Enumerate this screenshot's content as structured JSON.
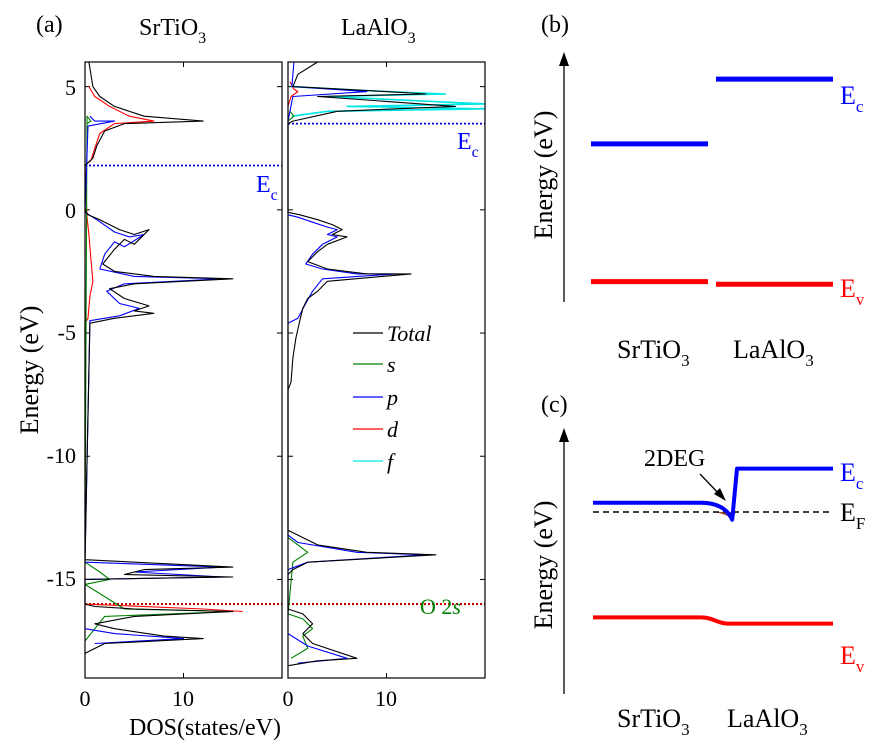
{
  "panel_a": {
    "label": "(a)",
    "title_left": "SrTiO",
    "title_left_sub": "3",
    "title_right": "LaAlO",
    "title_right_sub": "3",
    "ylabel": "Energy (eV)",
    "xlabel": "DOS(states/eV)",
    "yticks": [
      "5",
      "0",
      "-5",
      "-10",
      "-15"
    ],
    "xticks_left": [
      "0",
      "10"
    ],
    "xticks_right": [
      "0",
      "10"
    ],
    "ec_left": "E",
    "ec_left_sub": "c",
    "ec_right": "E",
    "ec_right_sub": "c",
    "o2s_label": "O 2",
    "o2s_italic": "s",
    "legend": [
      "Total",
      "s",
      "p",
      "d",
      "f"
    ]
  },
  "panel_b": {
    "label": "(b)",
    "ylabel": "Energy (eV)",
    "ec": "E",
    "ec_sub": "c",
    "ev": "E",
    "ev_sub": "v",
    "material_left": "SrTiO",
    "material_left_sub": "3",
    "material_right": "LaAlO",
    "material_right_sub": "3"
  },
  "panel_c": {
    "label": "(c)",
    "ylabel": "Energy (eV)",
    "annotation": "2DEG",
    "ec": "E",
    "ec_sub": "c",
    "ef": "E",
    "ef_sub": "F",
    "ev": "E",
    "ev_sub": "v",
    "material_left": "SrTiO",
    "material_left_sub": "3",
    "material_right": "LaAlO",
    "material_right_sub": "3"
  },
  "colors": {
    "total": "#000000",
    "s": "#008000",
    "p": "#0000ff",
    "d": "#ff0000",
    "f": "#00e5e5",
    "ec_line": "#0000ff",
    "ev_line": "#ff0000",
    "o2s_line": "#c00000",
    "twodeg_fill": "#a0522d"
  },
  "chart_data": [
    {
      "type": "line",
      "panel": "a-SrTiO3",
      "title": "SrTiO3",
      "xlabel": "DOS(states/eV)",
      "ylabel": "Energy (eV)",
      "xlim": [
        0,
        20
      ],
      "ylim": [
        -19,
        6
      ],
      "ec": 1.8,
      "o2s": -16.0,
      "series": [
        {
          "name": "Total",
          "points": [
            [
              0.4,
              6
            ],
            [
              0.6,
              5.5
            ],
            [
              0.8,
              5
            ],
            [
              1.5,
              4.6
            ],
            [
              3,
              4.2
            ],
            [
              6,
              3.8
            ],
            [
              12,
              3.6
            ],
            [
              4,
              3.5
            ],
            [
              2,
              3.2
            ],
            [
              1.2,
              2.6
            ],
            [
              0.8,
              2.1
            ],
            [
              0,
              1.8
            ],
            [
              0,
              0
            ],
            [
              0.3,
              -0.2
            ],
            [
              1.5,
              -0.4
            ],
            [
              3.5,
              -0.8
            ],
            [
              5,
              -1.0
            ],
            [
              6.5,
              -0.8
            ],
            [
              5,
              -1.4
            ],
            [
              4,
              -1.2
            ],
            [
              3,
              -1.6
            ],
            [
              1.8,
              -2.2
            ],
            [
              3,
              -2.5
            ],
            [
              7,
              -2.7
            ],
            [
              15,
              -2.8
            ],
            [
              5,
              -3.0
            ],
            [
              2.5,
              -3.2
            ],
            [
              4,
              -3.6
            ],
            [
              6.5,
              -3.9
            ],
            [
              5,
              -4.1
            ],
            [
              7,
              -4.2
            ],
            [
              3,
              -4.4
            ],
            [
              0.5,
              -4.6
            ],
            [
              0,
              -14.2
            ],
            [
              15,
              -14.5
            ],
            [
              6,
              -14.6
            ],
            [
              4,
              -14.8
            ],
            [
              15,
              -14.9
            ],
            [
              0,
              -15.0
            ],
            [
              0,
              -16.0
            ],
            [
              1,
              -16.1
            ],
            [
              5,
              -16.2
            ],
            [
              15,
              -16.3
            ],
            [
              5,
              -16.5
            ],
            [
              1,
              -16.8
            ],
            [
              3,
              -17.0
            ],
            [
              8,
              -17.3
            ],
            [
              12,
              -17.4
            ],
            [
              2,
              -17.6
            ],
            [
              0.5,
              -17.9
            ],
            [
              0,
              -18
            ]
          ]
        },
        {
          "name": "s",
          "points": [
            [
              0.2,
              3.5
            ],
            [
              0.6,
              3.6
            ],
            [
              0.2,
              3.8
            ],
            [
              0,
              -14.3
            ],
            [
              1.5,
              -14.7
            ],
            [
              2.5,
              -15.0
            ],
            [
              0,
              -15.2
            ],
            [
              4,
              -16.2
            ],
            [
              15,
              -16.3
            ],
            [
              2,
              -16.5
            ],
            [
              0,
              -17.5
            ]
          ]
        },
        {
          "name": "p",
          "points": [
            [
              0.5,
              3.8
            ],
            [
              1,
              3.6
            ],
            [
              3,
              3.6
            ],
            [
              0.3,
              3.4
            ],
            [
              0,
              -0.1
            ],
            [
              1.2,
              -0.4
            ],
            [
              3,
              -0.9
            ],
            [
              4.5,
              -1.1
            ],
            [
              6,
              -1.0
            ],
            [
              4,
              -1.5
            ],
            [
              3,
              -1.3
            ],
            [
              2,
              -1.8
            ],
            [
              1.5,
              -2.4
            ],
            [
              5,
              -2.7
            ],
            [
              14,
              -2.8
            ],
            [
              4,
              -3.0
            ],
            [
              2.2,
              -3.3
            ],
            [
              3.5,
              -3.8
            ],
            [
              5.5,
              -4.0
            ],
            [
              3.5,
              -4.3
            ],
            [
              0.5,
              -4.5
            ],
            [
              0,
              -14.3
            ],
            [
              14,
              -14.5
            ],
            [
              5,
              -14.7
            ],
            [
              14,
              -14.9
            ],
            [
              0,
              -15.0
            ],
            [
              0,
              -17.0
            ],
            [
              3,
              -17.2
            ],
            [
              10,
              -17.4
            ],
            [
              1,
              -17.6
            ]
          ]
        },
        {
          "name": "d",
          "points": [
            [
              0.4,
              5
            ],
            [
              1,
              4.6
            ],
            [
              2.5,
              4.2
            ],
            [
              4.5,
              3.8
            ],
            [
              7,
              3.6
            ],
            [
              3,
              3.5
            ],
            [
              1.5,
              3.1
            ],
            [
              1,
              2.5
            ],
            [
              0.6,
              2.0
            ],
            [
              0,
              1.8
            ],
            [
              0.2,
              -0.3
            ],
            [
              0.4,
              -1.0
            ],
            [
              0.6,
              -2.0
            ],
            [
              0.8,
              -2.9
            ],
            [
              0.5,
              -3.5
            ],
            [
              0.3,
              -4.4
            ],
            [
              0,
              -4.6
            ],
            [
              0,
              -16.0
            ],
            [
              12,
              -16.2
            ],
            [
              16,
              -16.3
            ]
          ]
        }
      ]
    },
    {
      "type": "line",
      "panel": "a-LaAlO3",
      "title": "LaAlO3",
      "xlabel": "DOS(states/eV)",
      "xlim": [
        0,
        20
      ],
      "ylim": [
        -19,
        6
      ],
      "ec": 3.5,
      "o2s": -16.0,
      "series": [
        {
          "name": "Total",
          "points": [
            [
              3,
              6
            ],
            [
              1,
              5.5
            ],
            [
              0.5,
              5
            ],
            [
              10,
              4.8
            ],
            [
              14,
              4.7
            ],
            [
              3,
              4.6
            ],
            [
              17,
              4.2
            ],
            [
              5,
              4.0
            ],
            [
              0.5,
              3.6
            ],
            [
              0,
              3.5
            ],
            [
              0,
              -0.1
            ],
            [
              1.2,
              -0.2
            ],
            [
              3,
              -0.4
            ],
            [
              4.5,
              -0.6
            ],
            [
              5.5,
              -0.8
            ],
            [
              4.5,
              -1.0
            ],
            [
              6,
              -1.1
            ],
            [
              4,
              -1.4
            ],
            [
              3,
              -1.7
            ],
            [
              2,
              -2.1
            ],
            [
              4,
              -2.4
            ],
            [
              8,
              -2.6
            ],
            [
              12.5,
              -2.6
            ],
            [
              4,
              -2.9
            ],
            [
              3,
              -3.3
            ],
            [
              2,
              -3.6
            ],
            [
              1.5,
              -4.0
            ],
            [
              1.2,
              -4.5
            ],
            [
              0.8,
              -5.2
            ],
            [
              0.5,
              -6.0
            ],
            [
              0.3,
              -7.0
            ],
            [
              0,
              -7.3
            ],
            [
              0,
              -13.0
            ],
            [
              1,
              -13.2
            ],
            [
              3,
              -13.6
            ],
            [
              8,
              -13.9
            ],
            [
              15,
              -14.0
            ],
            [
              2,
              -14.3
            ],
            [
              0.5,
              -14.6
            ],
            [
              0,
              -14.8
            ],
            [
              0,
              -16.2
            ],
            [
              1.5,
              -16.4
            ],
            [
              2.5,
              -16.8
            ],
            [
              1.5,
              -17.2
            ],
            [
              2.5,
              -17.6
            ],
            [
              7,
              -18.2
            ],
            [
              3,
              -18.3
            ],
            [
              0,
              -18.5
            ]
          ]
        },
        {
          "name": "s",
          "points": [
            [
              0.2,
              4
            ],
            [
              0.6,
              3.8
            ],
            [
              0,
              3.6
            ],
            [
              0,
              -13.3
            ],
            [
              1,
              -13.6
            ],
            [
              2,
              -13.9
            ],
            [
              0.5,
              -14.3
            ],
            [
              0,
              -16.4
            ],
            [
              1.5,
              -16.6
            ],
            [
              2.5,
              -17.0
            ],
            [
              1.5,
              -17.3
            ],
            [
              2,
              -17.8
            ],
            [
              0.3,
              -18.2
            ]
          ]
        },
        {
          "name": "p",
          "points": [
            [
              0.6,
              6
            ],
            [
              0.4,
              5
            ],
            [
              8,
              4.8
            ],
            [
              0.5,
              4.6
            ],
            [
              0,
              3.6
            ],
            [
              0,
              -0.2
            ],
            [
              1,
              -0.3
            ],
            [
              2.5,
              -0.5
            ],
            [
              4,
              -0.7
            ],
            [
              5,
              -0.8
            ],
            [
              4,
              -1.0
            ],
            [
              5,
              -1.1
            ],
            [
              3.5,
              -1.4
            ],
            [
              2.5,
              -1.8
            ],
            [
              1.8,
              -2.2
            ],
            [
              3.5,
              -2.4
            ],
            [
              7,
              -2.6
            ],
            [
              11,
              -2.6
            ],
            [
              3.5,
              -2.8
            ],
            [
              2.5,
              -3.3
            ],
            [
              1.8,
              -3.8
            ],
            [
              1,
              -4.4
            ],
            [
              0,
              -4.6
            ],
            [
              0,
              -13.2
            ],
            [
              1,
              -13.5
            ],
            [
              7,
              -13.9
            ],
            [
              14,
              -14.0
            ],
            [
              2,
              -14.3
            ],
            [
              0,
              -14.6
            ],
            [
              0,
              -17.2
            ],
            [
              2,
              -17.7
            ],
            [
              6,
              -18.2
            ],
            [
              1,
              -18.4
            ]
          ]
        },
        {
          "name": "d",
          "points": [
            [
              0.2,
              5.2
            ],
            [
              0.6,
              4.9
            ],
            [
              1,
              4.8
            ],
            [
              0.3,
              4.6
            ],
            [
              0,
              4.2
            ]
          ]
        },
        {
          "name": "f",
          "points": [
            [
              0.3,
              5
            ],
            [
              10,
              4.8
            ],
            [
              16,
              4.7
            ],
            [
              4,
              4.6
            ],
            [
              20,
              4.3
            ],
            [
              6,
              4.2
            ],
            [
              20,
              4.1
            ],
            [
              4,
              4.0
            ],
            [
              0.4,
              3.8
            ]
          ]
        }
      ]
    },
    {
      "type": "line",
      "panel": "b",
      "ylabel": "Energy (eV)",
      "series": [
        {
          "name": "Ec",
          "segments": [
            {
              "material": "SrTiO3",
              "level": 2.3
            },
            {
              "material": "LaAlO3",
              "level": 4.7
            }
          ]
        },
        {
          "name": "Ev",
          "segments": [
            {
              "material": "SrTiO3",
              "level": -2.8
            },
            {
              "material": "LaAlO3",
              "level": -2.9
            }
          ]
        }
      ]
    },
    {
      "type": "line",
      "panel": "c",
      "ylabel": "Energy (eV)",
      "series": [
        {
          "name": "Ec",
          "points": [
            [
              0,
              0.3
            ],
            [
              0.45,
              0.3
            ],
            [
              0.55,
              0.15
            ],
            [
              0.58,
              -0.25
            ],
            [
              0.6,
              1.4
            ],
            [
              1.0,
              1.4
            ]
          ]
        },
        {
          "name": "EF",
          "points": [
            [
              0,
              0
            ],
            [
              1,
              0
            ]
          ]
        },
        {
          "name": "Ev",
          "points": [
            [
              0,
              -3.4
            ],
            [
              0.45,
              -3.4
            ],
            [
              0.55,
              -3.6
            ],
            [
              1.0,
              -3.6
            ]
          ]
        }
      ]
    }
  ]
}
